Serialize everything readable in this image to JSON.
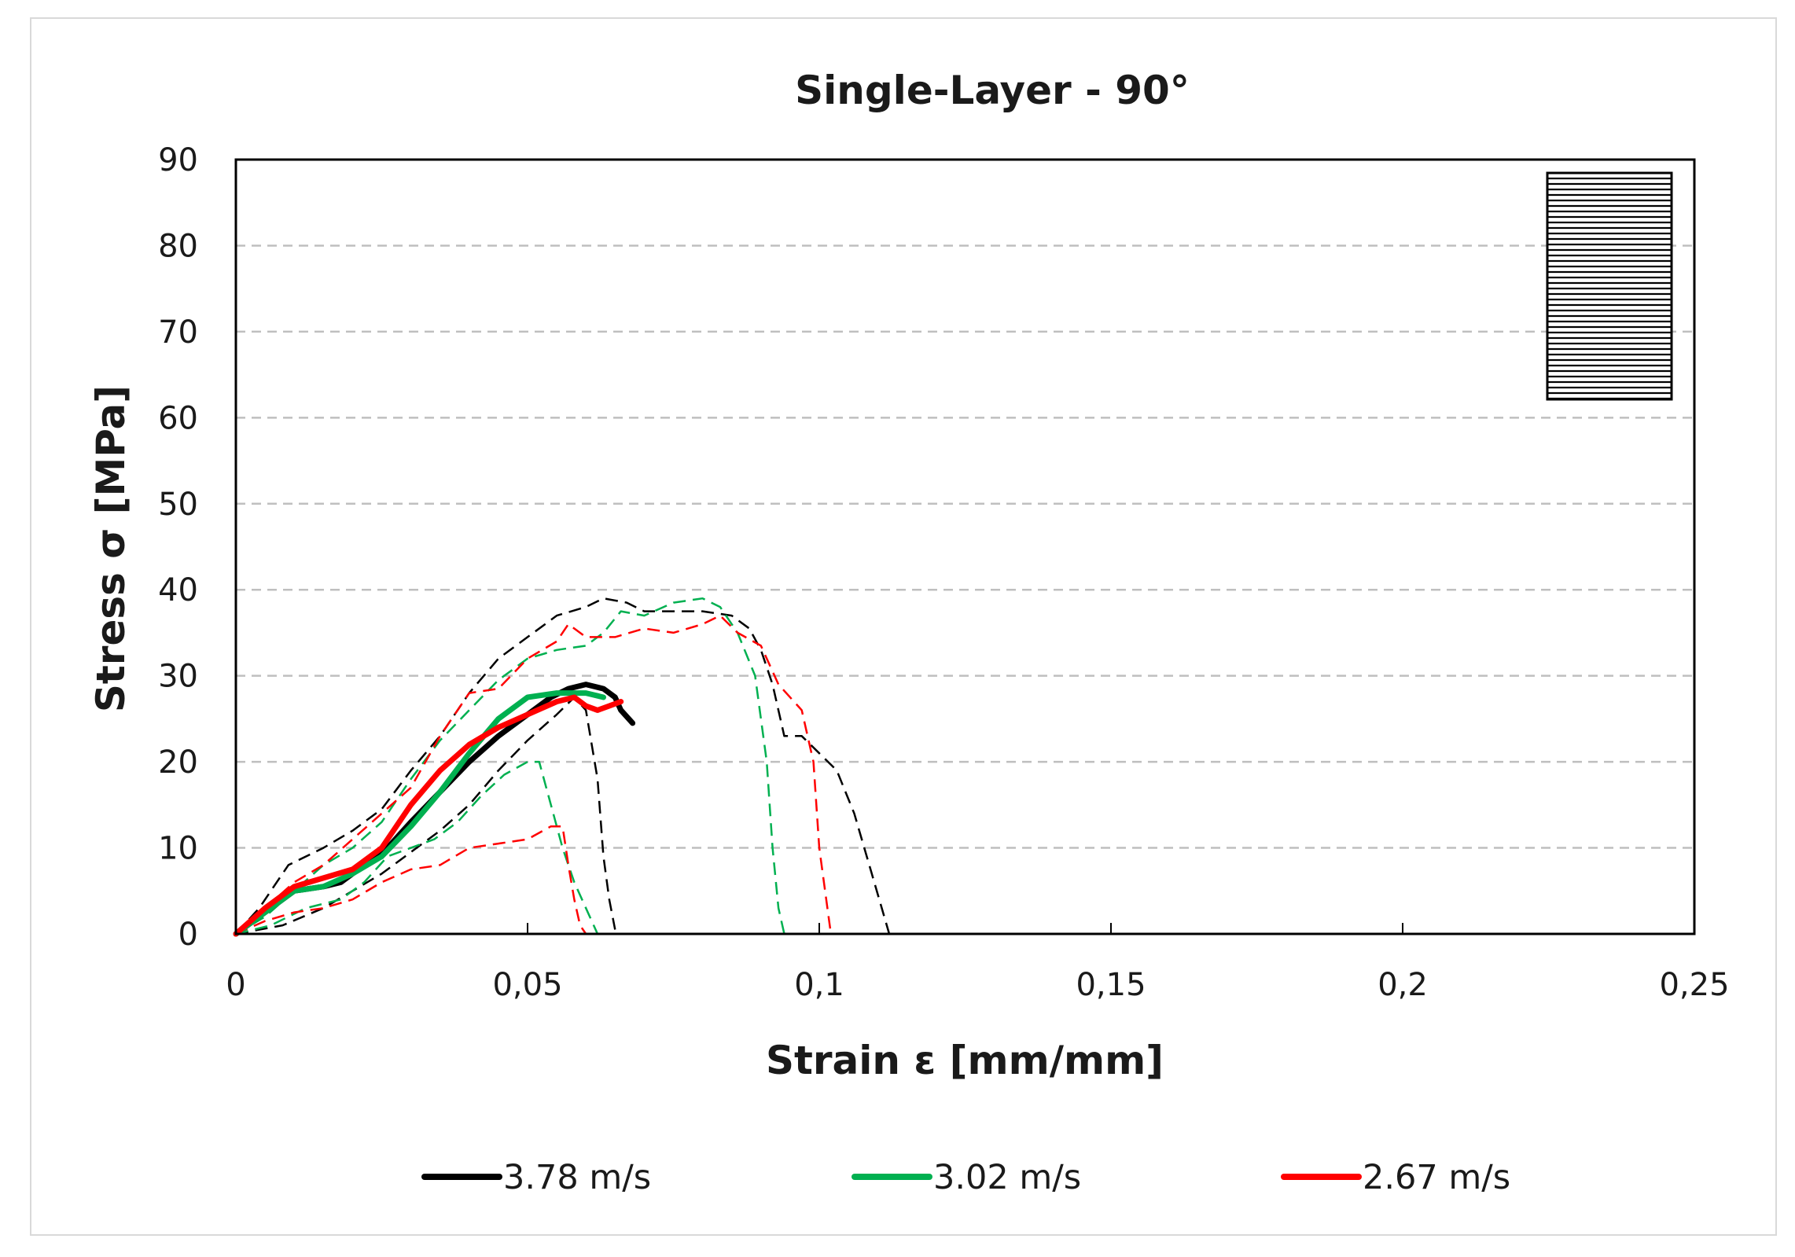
{
  "chart_data": {
    "type": "line",
    "title": "Single-Layer - 90°",
    "xlabel": "Strain ε [mm/mm]",
    "ylabel": "Stress σ [MPa]",
    "xlim": [
      0,
      0.25
    ],
    "ylim": [
      0,
      90
    ],
    "xticks": [
      0,
      0.05,
      0.1,
      0.15,
      0.2,
      0.25
    ],
    "xtick_labels": [
      "0",
      "0,05",
      "0,1",
      "0,15",
      "0,2",
      "0,25"
    ],
    "yticks": [
      0,
      10,
      20,
      30,
      40,
      50,
      60,
      70,
      80,
      90
    ],
    "ytick_labels": [
      "0",
      "10",
      "20",
      "30",
      "40",
      "50",
      "60",
      "70",
      "80",
      "90"
    ],
    "grid": "horizontal dashed",
    "legend_position": "bottom",
    "inset": "horizontally striped 90° specimen icon, top-right",
    "series": [
      {
        "name": "3.78 m/s",
        "color": "#000000",
        "style": "solid",
        "legend": true,
        "points": [
          [
            0,
            0
          ],
          [
            0.005,
            2.5
          ],
          [
            0.01,
            5
          ],
          [
            0.015,
            5.5
          ],
          [
            0.018,
            6
          ],
          [
            0.022,
            8
          ],
          [
            0.026,
            10
          ],
          [
            0.03,
            13
          ],
          [
            0.035,
            16.5
          ],
          [
            0.04,
            20
          ],
          [
            0.045,
            23
          ],
          [
            0.05,
            25.5
          ],
          [
            0.054,
            27.5
          ],
          [
            0.057,
            28.5
          ],
          [
            0.06,
            29
          ],
          [
            0.063,
            28.5
          ],
          [
            0.065,
            27.5
          ],
          [
            0.066,
            26
          ],
          [
            0.068,
            24.5
          ]
        ]
      },
      {
        "name": "3.78 m/s specimen 1",
        "color": "#000000",
        "style": "dashed",
        "legend": false,
        "points": [
          [
            0,
            0
          ],
          [
            0.004,
            3
          ],
          [
            0.009,
            8
          ],
          [
            0.015,
            10
          ],
          [
            0.02,
            12
          ],
          [
            0.025,
            14.5
          ],
          [
            0.03,
            19
          ],
          [
            0.035,
            23
          ],
          [
            0.04,
            28
          ],
          [
            0.045,
            32
          ],
          [
            0.05,
            34.5
          ],
          [
            0.055,
            37
          ],
          [
            0.06,
            38
          ],
          [
            0.063,
            39
          ],
          [
            0.067,
            38.5
          ],
          [
            0.07,
            37.5
          ],
          [
            0.075,
            37.5
          ],
          [
            0.08,
            37.5
          ],
          [
            0.085,
            37
          ],
          [
            0.088,
            35.5
          ],
          [
            0.09,
            33
          ],
          [
            0.092,
            29
          ],
          [
            0.094,
            23
          ],
          [
            0.097,
            23
          ],
          [
            0.1,
            21
          ],
          [
            0.103,
            19
          ],
          [
            0.106,
            14
          ],
          [
            0.109,
            7
          ],
          [
            0.112,
            0
          ]
        ]
      },
      {
        "name": "3.78 m/s specimen 2",
        "color": "#000000",
        "style": "dashed",
        "legend": false,
        "points": [
          [
            0,
            0
          ],
          [
            0.008,
            1
          ],
          [
            0.015,
            3
          ],
          [
            0.02,
            5
          ],
          [
            0.025,
            7
          ],
          [
            0.03,
            9.5
          ],
          [
            0.035,
            12
          ],
          [
            0.04,
            15
          ],
          [
            0.045,
            19
          ],
          [
            0.05,
            22.5
          ],
          [
            0.055,
            25.5
          ],
          [
            0.058,
            27.5
          ],
          [
            0.06,
            26
          ],
          [
            0.062,
            18
          ],
          [
            0.063,
            9
          ],
          [
            0.064,
            4
          ],
          [
            0.065,
            0.5
          ]
        ]
      },
      {
        "name": "3.02 m/s",
        "color": "#00b050",
        "style": "solid",
        "legend": true,
        "points": [
          [
            0,
            0
          ],
          [
            0.005,
            2.5
          ],
          [
            0.01,
            5
          ],
          [
            0.015,
            5.5
          ],
          [
            0.02,
            7
          ],
          [
            0.025,
            9
          ],
          [
            0.03,
            12.5
          ],
          [
            0.035,
            16.5
          ],
          [
            0.04,
            21
          ],
          [
            0.045,
            25
          ],
          [
            0.05,
            27.5
          ],
          [
            0.055,
            28
          ],
          [
            0.06,
            28
          ],
          [
            0.063,
            27.5
          ]
        ]
      },
      {
        "name": "3.02 m/s specimen 1",
        "color": "#00b050",
        "style": "dashed",
        "legend": false,
        "points": [
          [
            0,
            0
          ],
          [
            0.005,
            2
          ],
          [
            0.01,
            5
          ],
          [
            0.015,
            8
          ],
          [
            0.02,
            10
          ],
          [
            0.025,
            13
          ],
          [
            0.03,
            18
          ],
          [
            0.035,
            22.5
          ],
          [
            0.04,
            26
          ],
          [
            0.045,
            29.5
          ],
          [
            0.05,
            32
          ],
          [
            0.055,
            33
          ],
          [
            0.06,
            33.5
          ],
          [
            0.063,
            35
          ],
          [
            0.066,
            37.5
          ],
          [
            0.07,
            37
          ],
          [
            0.075,
            38.5
          ],
          [
            0.08,
            39
          ],
          [
            0.083,
            38
          ],
          [
            0.086,
            35
          ],
          [
            0.089,
            30
          ],
          [
            0.091,
            20
          ],
          [
            0.092,
            10
          ],
          [
            0.093,
            3
          ],
          [
            0.094,
            0
          ]
        ]
      },
      {
        "name": "3.02 m/s specimen 2",
        "color": "#00b050",
        "style": "dashed",
        "legend": false,
        "points": [
          [
            0,
            0
          ],
          [
            0.006,
            1
          ],
          [
            0.012,
            3
          ],
          [
            0.018,
            4
          ],
          [
            0.022,
            6
          ],
          [
            0.026,
            9
          ],
          [
            0.03,
            10
          ],
          [
            0.034,
            11
          ],
          [
            0.038,
            13
          ],
          [
            0.042,
            16
          ],
          [
            0.046,
            18.5
          ],
          [
            0.05,
            20
          ],
          [
            0.052,
            20
          ],
          [
            0.054,
            15
          ],
          [
            0.056,
            10
          ],
          [
            0.058,
            6
          ],
          [
            0.06,
            3
          ],
          [
            0.062,
            0
          ]
        ]
      },
      {
        "name": "2.67 m/s",
        "color": "#ff0000",
        "style": "solid",
        "legend": true,
        "points": [
          [
            0,
            0
          ],
          [
            0.005,
            3
          ],
          [
            0.01,
            5.5
          ],
          [
            0.015,
            6.5
          ],
          [
            0.02,
            7.5
          ],
          [
            0.025,
            10
          ],
          [
            0.03,
            15
          ],
          [
            0.035,
            19
          ],
          [
            0.04,
            22
          ],
          [
            0.045,
            24
          ],
          [
            0.05,
            25.5
          ],
          [
            0.055,
            27
          ],
          [
            0.058,
            27.5
          ],
          [
            0.06,
            26.5
          ],
          [
            0.062,
            26
          ],
          [
            0.064,
            26.5
          ],
          [
            0.066,
            27
          ]
        ]
      },
      {
        "name": "2.67 m/s specimen 1",
        "color": "#ff0000",
        "style": "dashed",
        "legend": false,
        "points": [
          [
            0,
            0
          ],
          [
            0.005,
            3
          ],
          [
            0.01,
            6
          ],
          [
            0.015,
            8
          ],
          [
            0.02,
            11
          ],
          [
            0.025,
            14
          ],
          [
            0.03,
            17
          ],
          [
            0.035,
            23
          ],
          [
            0.04,
            28
          ],
          [
            0.045,
            28.5
          ],
          [
            0.05,
            32
          ],
          [
            0.055,
            34
          ],
          [
            0.057,
            36
          ],
          [
            0.06,
            34.5
          ],
          [
            0.065,
            34.5
          ],
          [
            0.07,
            35.5
          ],
          [
            0.075,
            35
          ],
          [
            0.08,
            36
          ],
          [
            0.083,
            37
          ],
          [
            0.086,
            35
          ],
          [
            0.09,
            33.5
          ],
          [
            0.093,
            29
          ],
          [
            0.097,
            26
          ],
          [
            0.099,
            20
          ],
          [
            0.1,
            10
          ],
          [
            0.101,
            5
          ],
          [
            0.102,
            0
          ]
        ]
      },
      {
        "name": "2.67 m/s specimen 2",
        "color": "#ff0000",
        "style": "dashed",
        "legend": false,
        "points": [
          [
            0,
            0
          ],
          [
            0.005,
            1.5
          ],
          [
            0.01,
            2.5
          ],
          [
            0.015,
            3
          ],
          [
            0.02,
            4
          ],
          [
            0.025,
            6
          ],
          [
            0.03,
            7.5
          ],
          [
            0.035,
            8
          ],
          [
            0.04,
            10
          ],
          [
            0.045,
            10.5
          ],
          [
            0.05,
            11
          ],
          [
            0.054,
            12.5
          ],
          [
            0.056,
            12.5
          ],
          [
            0.057,
            8
          ],
          [
            0.058,
            4
          ],
          [
            0.059,
            1
          ],
          [
            0.06,
            0
          ]
        ]
      }
    ]
  }
}
